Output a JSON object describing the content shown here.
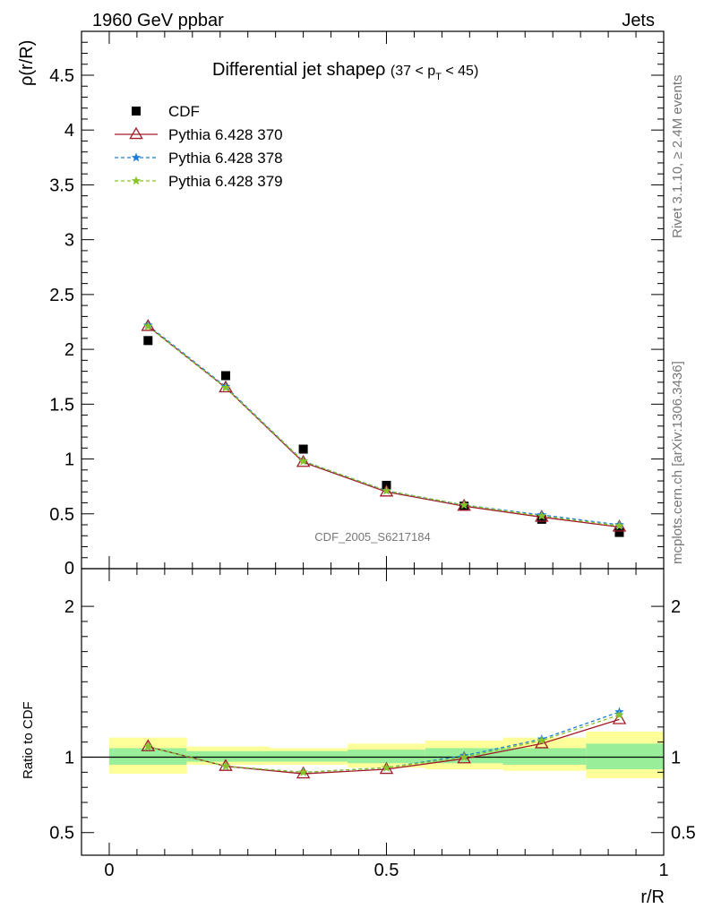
{
  "header": {
    "energy_label": "1960 GeV ppbar",
    "process_label": "Jets",
    "rivet_label": "Rivet 3.1.10, ≥ 2.4M events",
    "mcplots_label": "mcplots.cern.ch [arXiv:1306.3436]",
    "analysis_id": "CDF_2005_S6217184"
  },
  "chart_data": [
    {
      "type": "scatter",
      "panel": "main",
      "title": "Differential jet shapeρ",
      "subtitle": "(37 < p",
      "subtitle_sub": "T",
      "subtitle_end": " < 45)",
      "ylabel": "ρ(r/R)",
      "xlabel": "",
      "xlim": [
        -0.05,
        1.0
      ],
      "ylim": [
        0,
        4.9
      ],
      "yticks": [
        0.5,
        1,
        1.5,
        2,
        2.5,
        3,
        3.5,
        4,
        4.5
      ],
      "ytick_labels": [
        "0.5",
        "1",
        "1.5",
        "2",
        "2.5",
        "3",
        "3.5",
        "4",
        "4.5"
      ],
      "ytick_bottom_label": "0",
      "legend_position": "top-left",
      "x": [
        0.07,
        0.21,
        0.35,
        0.5,
        0.64,
        0.78,
        0.92
      ],
      "series": [
        {
          "name": "CDF",
          "values": [
            2.08,
            1.76,
            1.09,
            0.76,
            0.57,
            0.45,
            0.33
          ],
          "color": "#000000",
          "marker": "square",
          "line": "none"
        },
        {
          "name": "Pythia 6.428 370",
          "values": [
            2.21,
            1.65,
            0.97,
            0.7,
            0.57,
            0.47,
            0.38
          ],
          "color": "#a01c28",
          "marker": "triangle",
          "line": "solid"
        },
        {
          "name": "Pythia 6.428 378",
          "values": [
            2.22,
            1.66,
            0.98,
            0.71,
            0.58,
            0.49,
            0.4
          ],
          "color": "#1a7fd4",
          "marker": "star",
          "line": "dashed"
        },
        {
          "name": "Pythia 6.428 379",
          "values": [
            2.21,
            1.65,
            0.98,
            0.71,
            0.58,
            0.48,
            0.39
          ],
          "color": "#88c428",
          "marker": "star",
          "line": "dashed"
        }
      ]
    },
    {
      "type": "line",
      "panel": "ratio",
      "ylabel": "Ratio to CDF",
      "xlabel": "r/R",
      "xlim": [
        -0.05,
        1.0
      ],
      "ylim": [
        0.35,
        2.25
      ],
      "yticks": [
        0.5,
        1,
        2
      ],
      "ytick_labels": [
        "0.5",
        "1",
        "2"
      ],
      "xticks": [
        0,
        0.5,
        1
      ],
      "xtick_labels": [
        "0",
        "0.5",
        "1"
      ],
      "reference": 1,
      "bands": [
        {
          "x0": 0.0,
          "x1": 0.14,
          "inner": [
            0.95,
            1.06
          ],
          "outer": [
            0.89,
            1.13
          ]
        },
        {
          "x0": 0.14,
          "x1": 0.29,
          "inner": [
            0.97,
            1.04
          ],
          "outer": [
            0.95,
            1.07
          ]
        },
        {
          "x0": 0.29,
          "x1": 0.43,
          "inner": [
            0.97,
            1.04
          ],
          "outer": [
            0.95,
            1.06
          ]
        },
        {
          "x0": 0.43,
          "x1": 0.57,
          "inner": [
            0.96,
            1.05
          ],
          "outer": [
            0.93,
            1.09
          ]
        },
        {
          "x0": 0.57,
          "x1": 0.71,
          "inner": [
            0.96,
            1.06
          ],
          "outer": [
            0.92,
            1.11
          ]
        },
        {
          "x0": 0.71,
          "x1": 0.86,
          "inner": [
            0.95,
            1.06
          ],
          "outer": [
            0.91,
            1.13
          ]
        },
        {
          "x0": 0.86,
          "x1": 1.0,
          "inner": [
            0.92,
            1.09
          ],
          "outer": [
            0.86,
            1.17
          ]
        }
      ],
      "x": [
        0.07,
        0.21,
        0.35,
        0.5,
        0.64,
        0.78,
        0.92
      ],
      "series": [
        {
          "name": "Pythia 6.428 370",
          "values": [
            1.07,
            0.94,
            0.89,
            0.92,
            0.99,
            1.09,
            1.25
          ],
          "color": "#a01c28",
          "marker": "triangle",
          "line": "solid"
        },
        {
          "name": "Pythia 6.428 378",
          "values": [
            1.07,
            0.94,
            0.9,
            0.93,
            1.01,
            1.12,
            1.3
          ],
          "color": "#1a7fd4",
          "marker": "star",
          "line": "dashed"
        },
        {
          "name": "Pythia 6.428 379",
          "values": [
            1.07,
            0.94,
            0.9,
            0.93,
            1.0,
            1.11,
            1.28
          ],
          "color": "#88c428",
          "marker": "star",
          "line": "dashed"
        }
      ]
    }
  ]
}
